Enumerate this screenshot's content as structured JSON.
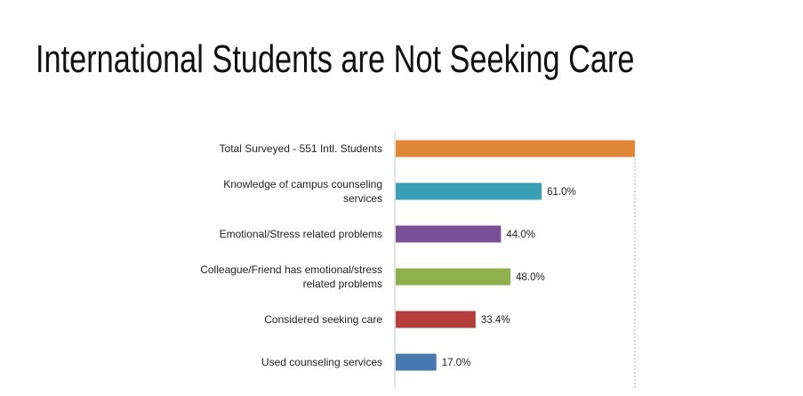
{
  "chart_data": {
    "type": "bar",
    "orientation": "horizontal",
    "title": "International Students are Not Seeking Care",
    "categories": [
      "Total Surveyed - 551 Intl. Students",
      "Knowledge of campus counseling services",
      "Emotional/Stress related problems",
      "Colleague/Friend has emotional/stress related problems",
      "Considered seeking care",
      "Used counseling services"
    ],
    "category_lines": [
      [
        "Total Surveyed - 551 Intl. Students"
      ],
      [
        "Knowledge of campus counseling",
        "services"
      ],
      [
        "Emotional/Stress related problems"
      ],
      [
        "Colleague/Friend has emotional/stress",
        "related problems"
      ],
      [
        "Considered seeking care"
      ],
      [
        "Used counseling services"
      ]
    ],
    "values": [
      100,
      61.0,
      44.0,
      48.0,
      33.4,
      17.0
    ],
    "data_labels": [
      "",
      "61.0%",
      "44.0%",
      "48.0%",
      "33.4%",
      "17.0%"
    ],
    "colors": [
      "#e0873a",
      "#3a9fb5",
      "#7b4f97",
      "#8fb14b",
      "#b53d3b",
      "#4778b0"
    ],
    "xlim": [
      0,
      100
    ],
    "xlabel": "",
    "ylabel": "",
    "grid": false,
    "legend": "none"
  }
}
